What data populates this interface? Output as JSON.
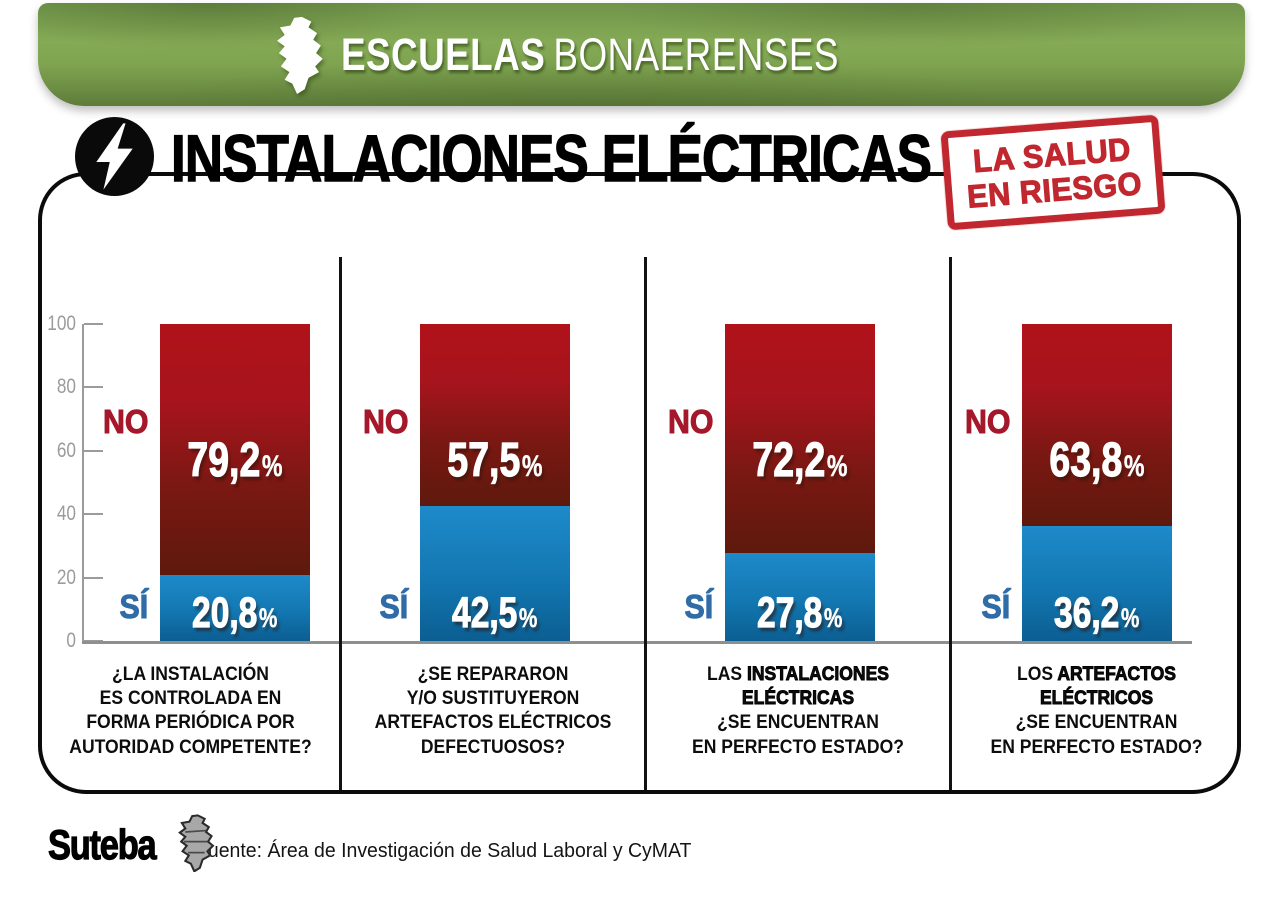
{
  "banner": {
    "brand_bold": "ESCUELAS",
    "brand_regular": "BONAERENSES"
  },
  "title": {
    "text": "INSTALACIONES ELÉCTRICAS"
  },
  "stamp": {
    "line1": "LA SALUD",
    "line2": "EN RIESGO",
    "color": "#c1272e"
  },
  "labels": {
    "no": "NO",
    "si": "SÍ"
  },
  "axis": {
    "tick_labels": [
      "100",
      "80",
      "60",
      "40",
      "20",
      "0"
    ]
  },
  "colors": {
    "banner_green": "#7fa450",
    "no_bar_top": "#b11219",
    "no_bar_bottom": "#5e190d",
    "si_bar_top": "#1e8aca",
    "si_bar_bottom": "#0b5e92",
    "no_label_text": "#a5182b",
    "si_label_text": "#2f6ca8",
    "axis_gray": "#9b9b9b",
    "stamp_red": "#c1272e"
  },
  "chart_data": {
    "type": "bar",
    "stacked": true,
    "orientation": "vertical",
    "unit": "%",
    "ylim": [
      0,
      100
    ],
    "yticks": [
      0,
      20,
      40,
      60,
      80,
      100
    ],
    "grid": false,
    "legend_position": "beside-bars",
    "title": "INSTALACIONES ELÉCTRICAS",
    "categories": [
      "¿La instalación es controlada en forma periódica por autoridad competente?",
      "¿Se repararon y/o sustituyeron artefactos eléctricos defectuosos?",
      "Las instalaciones eléctricas ¿se encuentran en perfecto estado?",
      "Los artefactos eléctricos ¿se encuentran en perfecto estado?"
    ],
    "series": [
      {
        "name": "NO",
        "values": [
          79.2,
          57.5,
          72.2,
          63.8
        ]
      },
      {
        "name": "SÍ",
        "values": [
          20.8,
          42.5,
          27.8,
          36.2
        ]
      }
    ]
  },
  "panels": [
    {
      "no_value": "79,2",
      "si_value": "20,8",
      "question": [
        [
          {
            "t": "¿LA INSTALACIÓN",
            "h": false
          }
        ],
        [
          {
            "t": "ES CONTROLADA EN",
            "h": false
          }
        ],
        [
          {
            "t": "FORMA PERIÓDICA POR",
            "h": false
          }
        ],
        [
          {
            "t": "AUTORIDAD COMPETENTE?",
            "h": false
          }
        ]
      ]
    },
    {
      "no_value": "57,5",
      "si_value": "42,5",
      "question": [
        [
          {
            "t": "¿SE REPARARON",
            "h": false
          }
        ],
        [
          {
            "t": "Y/O SUSTITUYERON",
            "h": false
          }
        ],
        [
          {
            "t": "ARTEFACTOS ELÉCTRICOS",
            "h": false
          }
        ],
        [
          {
            "t": "DEFECTUOSOS?",
            "h": false
          }
        ]
      ]
    },
    {
      "no_value": "72,2",
      "si_value": "27,8",
      "question": [
        [
          {
            "t": "LAS ",
            "h": false
          },
          {
            "t": "INSTALACIONES",
            "h": true
          }
        ],
        [
          {
            "t": "ELÉCTRICAS",
            "h": true
          }
        ],
        [
          {
            "t": "¿SE ENCUENTRAN",
            "h": false
          }
        ],
        [
          {
            "t": "EN PERFECTO ESTADO?",
            "h": false
          }
        ]
      ]
    },
    {
      "no_value": "63,8",
      "si_value": "36,2",
      "question": [
        [
          {
            "t": "LOS ",
            "h": false
          },
          {
            "t": "ARTEFACTOS",
            "h": true
          }
        ],
        [
          {
            "t": "ELÉCTRICOS",
            "h": true
          }
        ],
        [
          {
            "t": "¿SE ENCUENTRAN",
            "h": false
          }
        ],
        [
          {
            "t": "EN PERFECTO ESTADO?",
            "h": false
          }
        ]
      ]
    }
  ],
  "footer": {
    "logo_text": "Suteba",
    "source": "Fuente: Área de Investigación de Salud Laboral y CyMAT"
  }
}
